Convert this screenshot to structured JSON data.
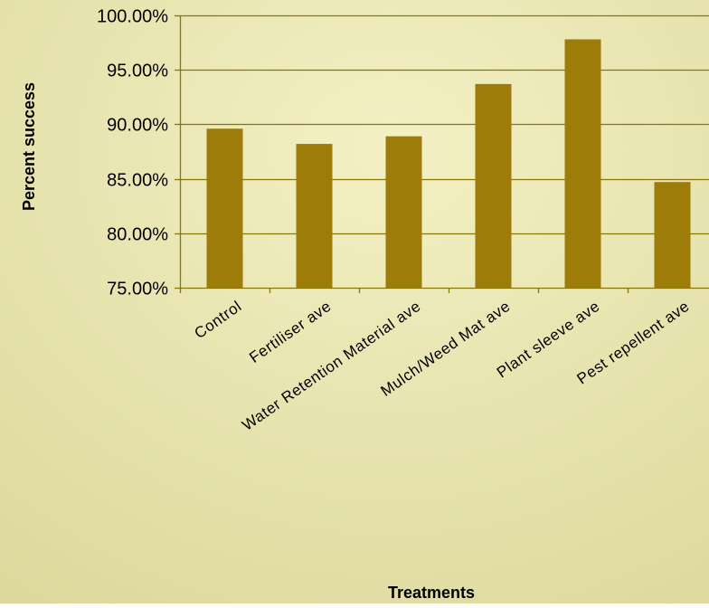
{
  "colors": {
    "background_light": "#f3f0c4",
    "background_dark": "#dcd79a",
    "bar": "#9d7c0a",
    "gridline": "#8a7608",
    "text": "#000000"
  },
  "chart_data": {
    "type": "bar",
    "categories": [
      "Control",
      "Fertiliser ave",
      "Water Retention Material ave",
      "Mulch/Weed Mat ave",
      "Plant sleeve ave",
      "Pest repellent ave"
    ],
    "values": [
      0.896,
      0.882,
      0.889,
      0.937,
      0.978,
      0.847
    ],
    "ylim": [
      0.75,
      1.0
    ],
    "yticks": [
      0.75,
      0.8,
      0.85,
      0.9,
      0.95,
      1.0
    ],
    "ytick_labels": [
      "75.00%",
      "80.00%",
      "85.00%",
      "90.00%",
      "95.00%",
      "100.00%"
    ],
    "xlabel": "Treatments",
    "ylabel": "Percent success",
    "grid": true,
    "legend": "none"
  }
}
